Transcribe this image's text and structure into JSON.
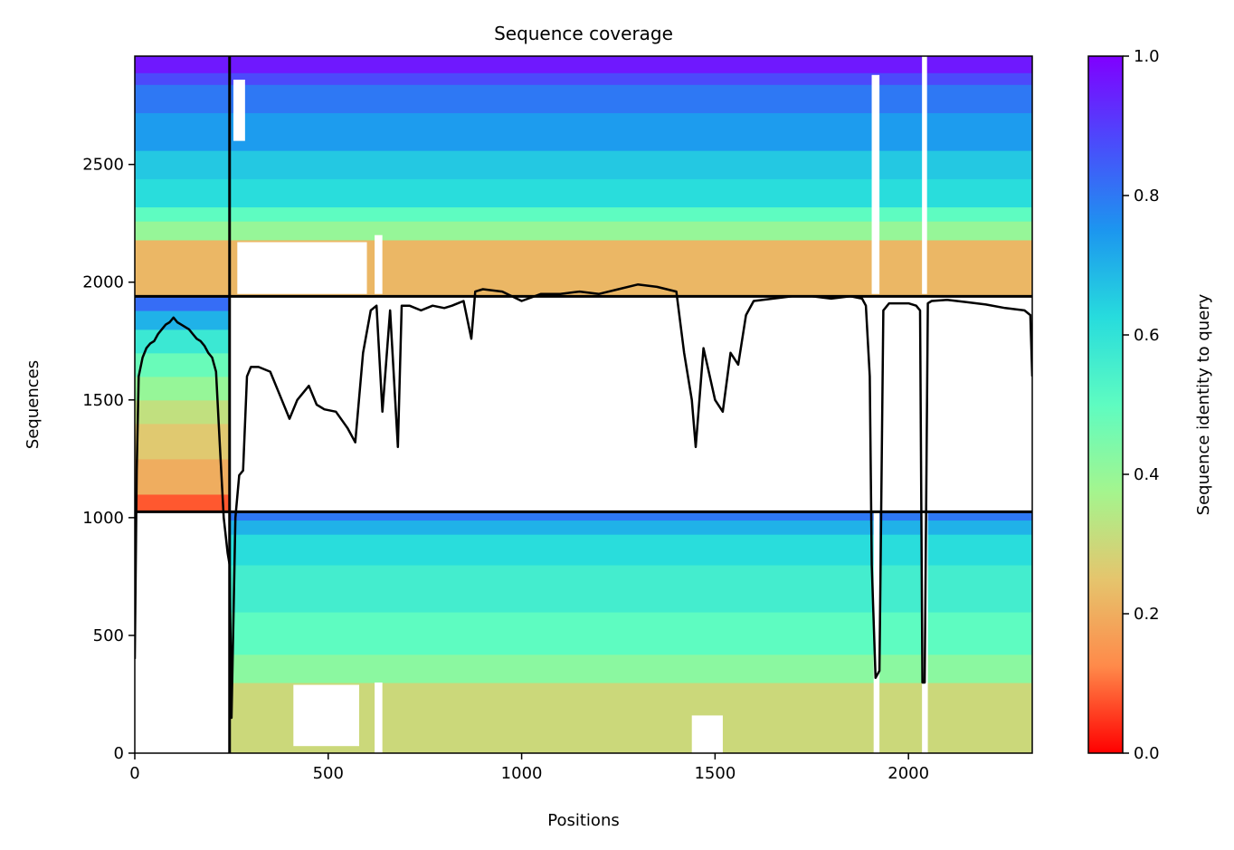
{
  "chart_data": {
    "type": "heatmap",
    "title": "Sequence coverage",
    "xlabel": "Positions",
    "ylabel": "Sequences",
    "xlim": [
      0,
      2320
    ],
    "ylim": [
      0,
      2960
    ],
    "x_ticks": [
      0,
      500,
      1000,
      1500,
      2000
    ],
    "y_ticks": [
      0,
      500,
      1000,
      1500,
      2000,
      2500
    ],
    "grid": false,
    "colorbar": {
      "label": "Sequence identity to query",
      "range": [
        0.0,
        1.0
      ],
      "ticks": [
        0.0,
        0.2,
        0.4,
        0.6,
        0.8,
        1.0
      ],
      "colormap": "rainbow_r",
      "colors": [
        "#ff0000",
        "#ff8a4a",
        "#e5c56d",
        "#a4f58e",
        "#5efcc1",
        "#27dcdd",
        "#1c96ef",
        "#4a4cfb",
        "#8000ff"
      ]
    },
    "separators": {
      "vertical_x": [
        245
      ],
      "horizontal_y": [
        1025,
        1940
      ]
    },
    "blocks": [
      {
        "name": "block-1",
        "x_range": [
          0,
          245
        ],
        "y_range": [
          1025,
          1940
        ],
        "identity_bands": [
          {
            "y": [
              1025,
              1100
            ],
            "identity": 0.08
          },
          {
            "y": [
              1100,
              1250
            ],
            "identity": 0.2
          },
          {
            "y": [
              1250,
              1400
            ],
            "identity": 0.26
          },
          {
            "y": [
              1400,
              1500
            ],
            "identity": 0.32
          },
          {
            "y": [
              1500,
              1600
            ],
            "identity": 0.4
          },
          {
            "y": [
              1600,
              1700
            ],
            "identity": 0.48
          },
          {
            "y": [
              1700,
              1800
            ],
            "identity": 0.58
          },
          {
            "y": [
              1800,
              1880
            ],
            "identity": 0.7
          },
          {
            "y": [
              1880,
              1940
            ],
            "identity": 0.82
          }
        ]
      },
      {
        "name": "block-2",
        "x_range": [
          0,
          2320
        ],
        "y_range": [
          1940,
          2960
        ],
        "identity_bands": [
          {
            "y": [
              1940,
              2180
            ],
            "identity": 0.22
          },
          {
            "y": [
              2180,
              2260
            ],
            "identity": 0.4
          },
          {
            "y": [
              2260,
              2320
            ],
            "identity": 0.5
          },
          {
            "y": [
              2320,
              2440
            ],
            "identity": 0.62
          },
          {
            "y": [
              2440,
              2560
            ],
            "identity": 0.66
          },
          {
            "y": [
              2560,
              2720
            ],
            "identity": 0.74
          },
          {
            "y": [
              2720,
              2840
            ],
            "identity": 0.8
          },
          {
            "y": [
              2840,
              2890
            ],
            "identity": 0.88
          },
          {
            "y": [
              2890,
              2960
            ],
            "identity": 0.96
          }
        ]
      },
      {
        "name": "block-3",
        "x_range": [
          245,
          2320
        ],
        "y_range": [
          0,
          1025
        ],
        "identity_bands": [
          {
            "y": [
              0,
              300
            ],
            "identity": 0.3
          },
          {
            "y": [
              300,
              420
            ],
            "identity": 0.42
          },
          {
            "y": [
              420,
              600
            ],
            "identity": 0.5
          },
          {
            "y": [
              600,
              800
            ],
            "identity": 0.56
          },
          {
            "y": [
              800,
              930
            ],
            "identity": 0.62
          },
          {
            "y": [
              930,
              990
            ],
            "identity": 0.7
          },
          {
            "y": [
              990,
              1025
            ],
            "identity": 0.8
          }
        ]
      }
    ],
    "gaps": [
      {
        "x": [
          255,
          285
        ],
        "y": [
          2600,
          2860
        ]
      },
      {
        "x": [
          265,
          600
        ],
        "y": [
          1950,
          2170
        ]
      },
      {
        "x": [
          620,
          640
        ],
        "y": [
          1950,
          2200
        ]
      },
      {
        "x": [
          1905,
          1925
        ],
        "y": [
          1950,
          2880
        ]
      },
      {
        "x": [
          2035,
          2048
        ],
        "y": [
          1950,
          2960
        ]
      },
      {
        "x": [
          1910,
          1925
        ],
        "y": [
          0,
          1025
        ]
      },
      {
        "x": [
          2035,
          2050
        ],
        "y": [
          0,
          1025
        ]
      },
      {
        "x": [
          620,
          640
        ],
        "y": [
          0,
          300
        ]
      },
      {
        "x": [
          410,
          580
        ],
        "y": [
          30,
          290
        ]
      },
      {
        "x": [
          1440,
          1520
        ],
        "y": [
          0,
          160
        ]
      }
    ],
    "series": [
      {
        "type": "line",
        "color": "#000000",
        "x": [
          0,
          5,
          10,
          20,
          30,
          40,
          50,
          60,
          70,
          80,
          90,
          100,
          110,
          120,
          130,
          140,
          150,
          160,
          170,
          180,
          190,
          200,
          210,
          220,
          230,
          240,
          245,
          250,
          260,
          270,
          280,
          290,
          300,
          320,
          350,
          380,
          400,
          420,
          450,
          470,
          490,
          520,
          550,
          570,
          590,
          610,
          625,
          640,
          660,
          680,
          690,
          710,
          740,
          770,
          800,
          820,
          850,
          870,
          880,
          900,
          950,
          1000,
          1050,
          1100,
          1150,
          1200,
          1250,
          1300,
          1350,
          1400,
          1420,
          1440,
          1450,
          1470,
          1500,
          1520,
          1540,
          1560,
          1580,
          1600,
          1650,
          1700,
          1750,
          1800,
          1850,
          1880,
          1890,
          1900,
          1905,
          1915,
          1925,
          1935,
          1950,
          2000,
          2020,
          2030,
          2036,
          2042,
          2050,
          2060,
          2100,
          2150,
          2200,
          2250,
          2300,
          2315,
          2320
        ],
        "y": [
          400,
          1200,
          1600,
          1680,
          1720,
          1740,
          1750,
          1780,
          1800,
          1820,
          1830,
          1850,
          1830,
          1820,
          1810,
          1800,
          1780,
          1760,
          1750,
          1730,
          1700,
          1680,
          1620,
          1300,
          1000,
          850,
          800,
          150,
          1000,
          1180,
          1200,
          1600,
          1640,
          1640,
          1620,
          1500,
          1420,
          1500,
          1560,
          1480,
          1460,
          1450,
          1380,
          1320,
          1700,
          1880,
          1900,
          1450,
          1880,
          1300,
          1900,
          1900,
          1880,
          1900,
          1890,
          1900,
          1920,
          1760,
          1960,
          1970,
          1960,
          1920,
          1950,
          1950,
          1960,
          1950,
          1970,
          1990,
          1980,
          1960,
          1700,
          1500,
          1300,
          1720,
          1500,
          1450,
          1700,
          1650,
          1860,
          1920,
          1930,
          1940,
          1940,
          1930,
          1940,
          1930,
          1900,
          1600,
          800,
          320,
          350,
          1880,
          1910,
          1910,
          1900,
          1880,
          300,
          300,
          1910,
          1920,
          1925,
          1915,
          1905,
          1890,
          1880,
          1860,
          1600
        ]
      }
    ]
  }
}
